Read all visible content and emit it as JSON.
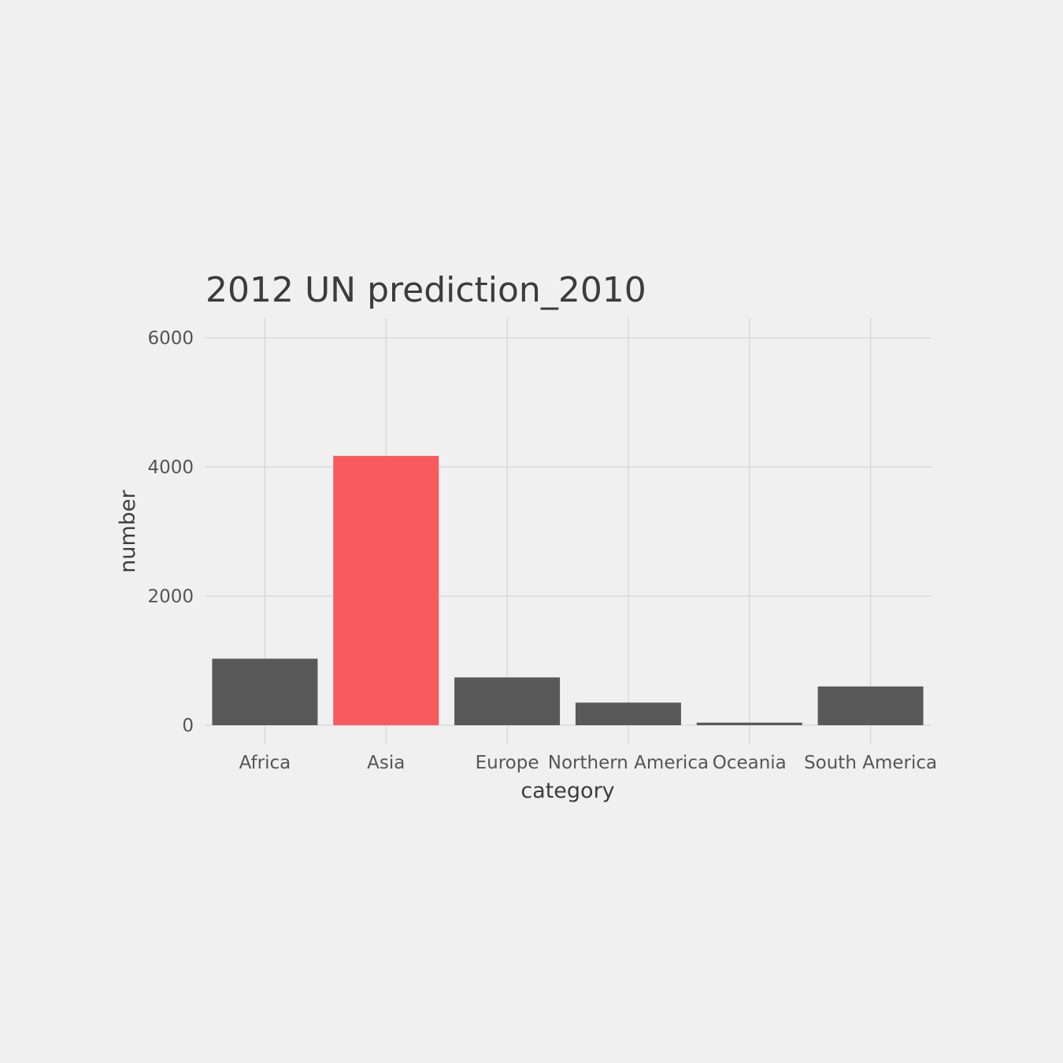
{
  "colors": {
    "background": "#f0f0f0",
    "default_bar": "#595959",
    "highlight_bar": "#f8595c",
    "grid": "#d6d6d6"
  },
  "chart_data": {
    "type": "bar",
    "title": "2012 UN prediction_2010",
    "xlabel": "category",
    "ylabel": "number",
    "categories": [
      "Africa",
      "Asia",
      "Europe",
      "Northern America",
      "Oceania",
      "South America"
    ],
    "values": [
      1030,
      4170,
      740,
      350,
      40,
      600
    ],
    "highlight": "Asia",
    "ylim": [
      0,
      6300
    ],
    "yticks": [
      0,
      2000,
      4000,
      6000
    ],
    "grid": true,
    "legend": "none"
  }
}
